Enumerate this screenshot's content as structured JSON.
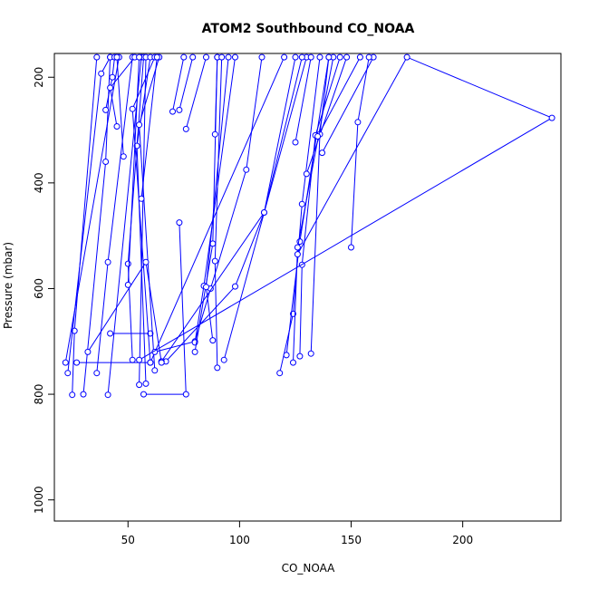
{
  "chart_data": {
    "type": "line",
    "title": "ATOM2 Southbound CO_NOAA",
    "xlabel": "CO_NOAA",
    "ylabel": "Pressure (mbar)",
    "xlim": [
      17,
      244
    ],
    "ylim": [
      1040,
      155
    ],
    "y_reversed": true,
    "x_ticks": [
      50,
      100,
      150,
      200
    ],
    "y_ticks": [
      200,
      400,
      600,
      800,
      1000
    ],
    "grid": false,
    "legend": "none",
    "color": "#0000ff",
    "series": [
      {
        "points": [
          [
            25,
            801
          ],
          [
            26,
            680
          ],
          [
            36,
            162
          ]
        ]
      },
      {
        "points": [
          [
            23,
            760
          ],
          [
            38,
            193
          ],
          [
            42,
            162
          ]
        ]
      },
      {
        "points": [
          [
            22,
            740
          ],
          [
            46,
            162
          ]
        ]
      },
      {
        "points": [
          [
            30,
            800
          ],
          [
            40,
            360
          ],
          [
            42,
            162
          ]
        ]
      },
      {
        "points": [
          [
            36,
            760
          ],
          [
            41,
            550
          ],
          [
            52,
            162
          ]
        ]
      },
      {
        "points": [
          [
            41,
            801
          ],
          [
            56,
            162
          ]
        ]
      },
      {
        "points": [
          [
            40,
            262
          ],
          [
            43,
            200
          ],
          [
            44,
            162
          ]
        ]
      },
      {
        "points": [
          [
            45,
            293
          ],
          [
            42,
            220
          ],
          [
            53,
            162
          ]
        ]
      },
      {
        "points": [
          [
            42,
            685
          ],
          [
            60,
            685
          ]
        ]
      },
      {
        "points": [
          [
            52,
            735
          ],
          [
            50,
            553
          ],
          [
            57,
            162
          ]
        ]
      },
      {
        "points": [
          [
            50,
            593
          ],
          [
            55,
            162
          ]
        ]
      },
      {
        "points": [
          [
            55,
            782
          ],
          [
            58,
            162
          ]
        ]
      },
      {
        "points": [
          [
            58,
            780
          ],
          [
            54,
            330
          ],
          [
            60,
            162
          ]
        ]
      },
      {
        "points": [
          [
            60,
            740
          ],
          [
            52,
            260
          ],
          [
            62,
            162
          ]
        ]
      },
      {
        "points": [
          [
            62,
            755
          ],
          [
            55,
            290
          ],
          [
            64,
            162
          ]
        ]
      },
      {
        "points": [
          [
            56,
            430
          ],
          [
            63,
            162
          ]
        ]
      },
      {
        "points": [
          [
            57,
            800
          ],
          [
            76,
            800
          ],
          [
            73,
            475
          ]
        ]
      },
      {
        "points": [
          [
            70,
            265
          ],
          [
            75,
            162
          ]
        ]
      },
      {
        "points": [
          [
            73,
            262
          ],
          [
            79,
            162
          ]
        ]
      },
      {
        "points": [
          [
            76,
            298
          ],
          [
            85,
            162
          ]
        ]
      },
      {
        "points": [
          [
            60,
            740
          ],
          [
            120,
            162
          ]
        ]
      },
      {
        "points": [
          [
            62,
            720
          ],
          [
            80,
            700
          ],
          [
            87,
            600
          ],
          [
            103,
            375
          ],
          [
            110,
            162
          ]
        ]
      },
      {
        "points": [
          [
            80,
            702
          ],
          [
            84,
            595
          ],
          [
            98,
            162
          ]
        ]
      },
      {
        "points": [
          [
            80,
            720
          ],
          [
            88,
            515
          ],
          [
            90,
            162
          ]
        ]
      },
      {
        "points": [
          [
            89,
            308
          ],
          [
            90,
            162
          ]
        ]
      },
      {
        "points": [
          [
            90,
            750
          ],
          [
            89,
            548
          ],
          [
            92,
            162
          ]
        ]
      },
      {
        "points": [
          [
            88,
            698
          ],
          [
            85,
            597
          ],
          [
            95,
            162
          ]
        ]
      },
      {
        "points": [
          [
            93,
            735
          ],
          [
            130,
            162
          ]
        ]
      },
      {
        "points": [
          [
            67,
            738
          ],
          [
            98,
            596
          ],
          [
            111,
            456
          ],
          [
            125,
            162
          ]
        ]
      },
      {
        "points": [
          [
            65,
            738
          ],
          [
            111,
            456
          ],
          [
            128,
            162
          ]
        ]
      },
      {
        "points": [
          [
            118,
            760
          ],
          [
            124,
            648
          ],
          [
            128,
            440
          ],
          [
            136,
            162
          ]
        ]
      },
      {
        "points": [
          [
            121,
            726
          ],
          [
            127,
            511
          ],
          [
            140,
            162
          ]
        ]
      },
      {
        "points": [
          [
            124,
            740
          ],
          [
            126,
            522
          ],
          [
            142,
            162
          ]
        ]
      },
      {
        "points": [
          [
            127,
            728
          ],
          [
            128,
            555
          ],
          [
            134,
            310
          ],
          [
            145,
            162
          ]
        ]
      },
      {
        "points": [
          [
            125,
            323
          ],
          [
            132,
            162
          ]
        ]
      },
      {
        "points": [
          [
            130,
            383
          ],
          [
            148,
            162
          ]
        ]
      },
      {
        "points": [
          [
            132,
            723
          ],
          [
            136,
            308
          ],
          [
            140,
            162
          ]
        ]
      },
      {
        "points": [
          [
            135,
            312
          ],
          [
            154,
            162
          ]
        ]
      },
      {
        "points": [
          [
            137,
            343
          ],
          [
            160,
            162
          ]
        ]
      },
      {
        "points": [
          [
            150,
            522
          ],
          [
            153,
            285
          ],
          [
            158,
            162
          ]
        ]
      },
      {
        "points": [
          [
            126,
            535
          ],
          [
            175,
            162
          ],
          [
            240,
            277
          ],
          [
            55,
            735
          ]
        ]
      },
      {
        "points": [
          [
            27,
            740
          ],
          [
            60,
            740
          ]
        ]
      },
      {
        "points": [
          [
            32,
            720
          ],
          [
            58,
            550
          ],
          [
            65,
            740
          ]
        ]
      },
      {
        "points": [
          [
            48,
            350
          ],
          [
            45,
            162
          ]
        ]
      }
    ]
  }
}
